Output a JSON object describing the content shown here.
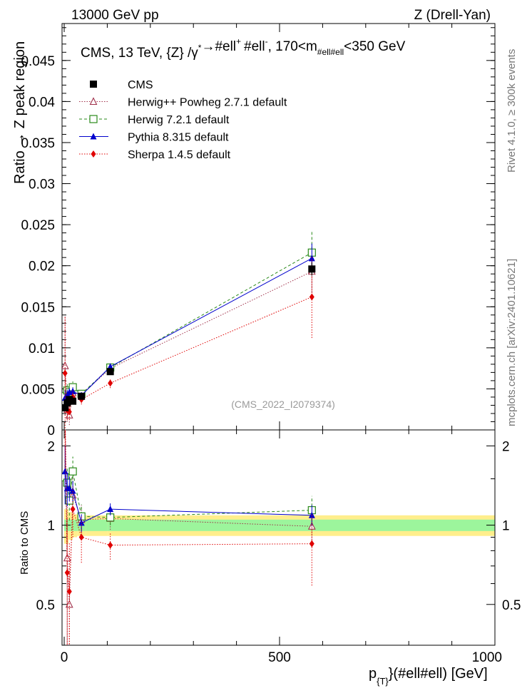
{
  "header": {
    "energy": "13000 GeV pp",
    "process": "Z (Drell-Yan)"
  },
  "side": {
    "rivet": "Rivet 4.1.0, ≥ 300k events",
    "mcplots": "mcplots.cern.ch [arXiv:2401.10621]"
  },
  "chart_data": {
    "type": "scatter",
    "title": "CMS, 13 TeV, {Z} /γ* → #ell+ #ell-, 170<m#ell#ell<350 GeV",
    "title_parts": {
      "main": "CMS, 13 TeV, {Z} /γ",
      "star": "*",
      "arrow": "→",
      "ell1": "#ell",
      "plus": "+",
      "ell2": "#ell",
      "minus": "-",
      "mid": ", 170<m",
      "sub": "#ell#ell",
      "end": "<350 GeV"
    },
    "ylabel": "Ratio → Z peak region",
    "ratio_ylabel": "Ratio to CMS",
    "xlabel_parts": {
      "p": "p",
      "sub": "{T}",
      "rest": "}(#ell#ell) [GeV]"
    },
    "watermark": "(CMS_2022_I2079374)",
    "xlim": [
      -5,
      1000
    ],
    "ylim": [
      0,
      0.0495
    ],
    "ratio_ylim": [
      0.35,
      2.3
    ],
    "xticks": [
      0,
      500,
      1000
    ],
    "xtick_labels": [
      "0",
      "500",
      "1000"
    ],
    "yticks": [
      0,
      0.005,
      0.01,
      0.015,
      0.02,
      0.025,
      0.03,
      0.035,
      0.04,
      0.045
    ],
    "ytick_labels": [
      "0",
      "0.005",
      "0.01",
      "0.015",
      "0.02",
      "0.025",
      "0.03",
      "0.035",
      "0.04",
      "0.045"
    ],
    "ratio_yticks": [
      0.5,
      1,
      2
    ],
    "ratio_ytick_labels": [
      "0.5",
      "1",
      "2"
    ],
    "legend_position": "top-left",
    "band": {
      "x": [
        0,
        10,
        20,
        30,
        40,
        50,
        100,
        1000
      ],
      "inner": [
        0.05,
        0.05,
        0.05,
        0.05,
        0.05,
        0.05,
        0.05,
        0.05
      ],
      "outer": [
        0.15,
        0.12,
        0.1,
        0.09,
        0.09,
        0.09,
        0.09,
        0.09
      ]
    },
    "series": [
      {
        "name": "CMS",
        "color": "#000000",
        "marker": "square",
        "line": "none",
        "x": [
          2,
          7,
          12,
          20,
          40,
          107,
          575
        ],
        "y": [
          0.0027,
          0.0033,
          0.0037,
          0.0035,
          0.0041,
          0.0071,
          0.0196
        ],
        "yerr": [
          0.0003,
          0.0003,
          0.0003,
          0.0003,
          0.0003,
          0.0004,
          0.0008
        ],
        "ratio": [
          1,
          1,
          1,
          1,
          1,
          1,
          1
        ]
      },
      {
        "name": "Herwig++ Powheg 2.7.1 default",
        "color": "#a0304a",
        "marker": "triangle-open",
        "line": "dotted",
        "x": [
          2,
          7,
          12,
          20,
          40,
          107,
          575
        ],
        "y": [
          0.0078,
          0.0025,
          0.0018,
          0.0045,
          0.0043,
          0.0075,
          0.0193
        ],
        "yerr": [
          0.006,
          0.0015,
          0.0012,
          0.0008,
          0.0005,
          0.0006,
          0.0025
        ],
        "ratio": [
          2.95,
          0.75,
          0.5,
          1.3,
          1.05,
          1.06,
          0.99
        ],
        "ratio_err": [
          0.8,
          0.45,
          0.3,
          0.25,
          0.14,
          0.1,
          0.13
        ]
      },
      {
        "name": "Herwig 7.2.1 default",
        "color": "#2a8a1a",
        "marker": "square-open",
        "line": "dashed",
        "x": [
          2,
          7,
          12,
          20,
          40,
          107,
          575
        ],
        "y": [
          0.0041,
          0.0048,
          0.0046,
          0.0052,
          0.0044,
          0.0076,
          0.0216
        ],
        "yerr": [
          0.0008,
          0.0008,
          0.0007,
          0.0007,
          0.0005,
          0.0005,
          0.0027
        ],
        "ratio": [
          1.52,
          1.45,
          1.24,
          1.6,
          1.08,
          1.07,
          1.14
        ],
        "ratio_err": [
          0.25,
          0.22,
          0.2,
          0.22,
          0.12,
          0.07,
          0.15
        ]
      },
      {
        "name": "Pythia 8.315 default",
        "color": "#0000cc",
        "marker": "triangle",
        "line": "solid",
        "x": [
          2,
          7,
          12,
          20,
          40,
          107,
          575
        ],
        "y": [
          0.0039,
          0.0043,
          0.0046,
          0.0047,
          0.0042,
          0.0077,
          0.0209
        ],
        "yerr": [
          0.001,
          0.0006,
          0.0005,
          0.0005,
          0.0004,
          0.0004,
          0.0018
        ],
        "ratio": [
          1.6,
          1.38,
          1.38,
          1.35,
          1.02,
          1.15,
          1.09
        ],
        "ratio_err": [
          0.4,
          0.2,
          0.15,
          0.12,
          0.08,
          0.06,
          0.1
        ]
      },
      {
        "name": "Sherpa 1.4.5 default",
        "color": "#e00000",
        "marker": "diamond",
        "line": "dotted",
        "x": [
          2,
          7,
          12,
          20,
          40,
          107,
          575
        ],
        "y": [
          0.0069,
          0.0024,
          0.0022,
          0.004,
          0.0037,
          0.0057,
          0.0162
        ],
        "yerr": [
          0.007,
          0.0012,
          0.001,
          0.0008,
          0.0006,
          0.0006,
          0.005
        ],
        "ratio": [
          2.55,
          0.66,
          0.56,
          1.15,
          0.9,
          0.84,
          0.85
        ],
        "ratio_err": [
          0.9,
          0.4,
          0.3,
          0.25,
          0.18,
          0.1,
          0.26
        ]
      }
    ]
  }
}
